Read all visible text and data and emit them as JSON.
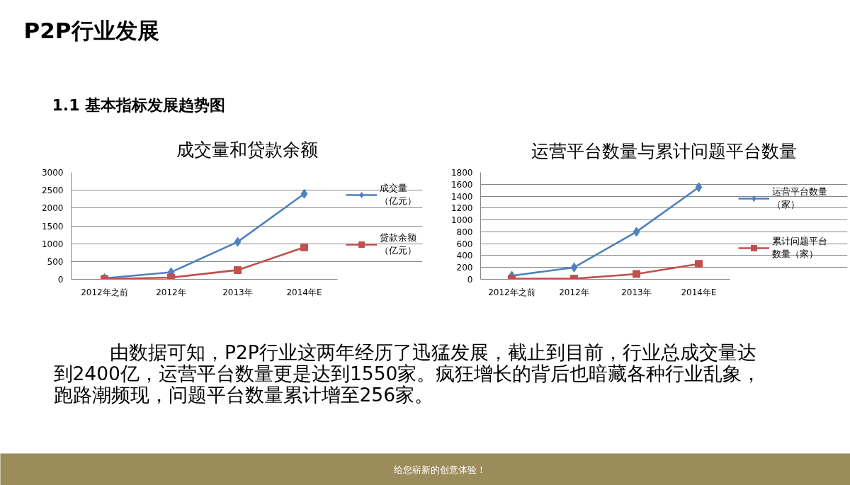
{
  "chart_data": [
    {
      "type": "other",
      "title": "P2P行业发展",
      "subtitle": "1.1 基本指标发展趋势图"
    },
    {
      "type": "line",
      "title": "成交量和贷款余额",
      "categories": [
        "2012年之前",
        "2012年",
        "2013年",
        "2014年E"
      ],
      "ylim": [
        0,
        3000
      ],
      "yticks": [
        0,
        500,
        1000,
        1500,
        2000,
        2500,
        3000
      ],
      "grid": "y",
      "legend": "right",
      "line_style": "solid",
      "series": [
        {
          "name": "成交量（亿元）",
          "color": "#4f81bd",
          "marker": "diamond",
          "values": [
            30,
            200,
            1050,
            2400
          ]
        },
        {
          "name": "贷款余额（亿元）",
          "color": "#c0504d",
          "marker": "square",
          "values": [
            10,
            50,
            260,
            900
          ]
        }
      ]
    },
    {
      "type": "line",
      "title": "运营平台数量与累计问题平台数量",
      "categories": [
        "2012年之前",
        "2012年",
        "2013年",
        "2014年E"
      ],
      "ylim": [
        0,
        1800
      ],
      "yticks": [
        0,
        200,
        400,
        600,
        800,
        1000,
        1200,
        1400,
        1600,
        1800
      ],
      "grid": "y",
      "legend": "right",
      "line_style": "solid",
      "series": [
        {
          "name": "运营平台数量（家）",
          "color": "#4f81bd",
          "marker": "diamond",
          "values": [
            60,
            200,
            800,
            1550
          ]
        },
        {
          "name": "累计问题平台数量（家）",
          "color": "#c0504d",
          "marker": "square",
          "values": [
            10,
            10,
            90,
            260
          ]
        }
      ]
    },
    {
      "type": "other",
      "annotations": [
        "由数据可知，P2P行业这两年经历了迅猛发展，截止到目前，行业总成交量达到2400亿，运营平台数量更是达到1550家。疯狂增长的背后也暗藏各种行业乱象，跑路潮频现，问题平台数量累计增至256家。",
        "给您崭新的创意体验！"
      ]
    }
  ]
}
